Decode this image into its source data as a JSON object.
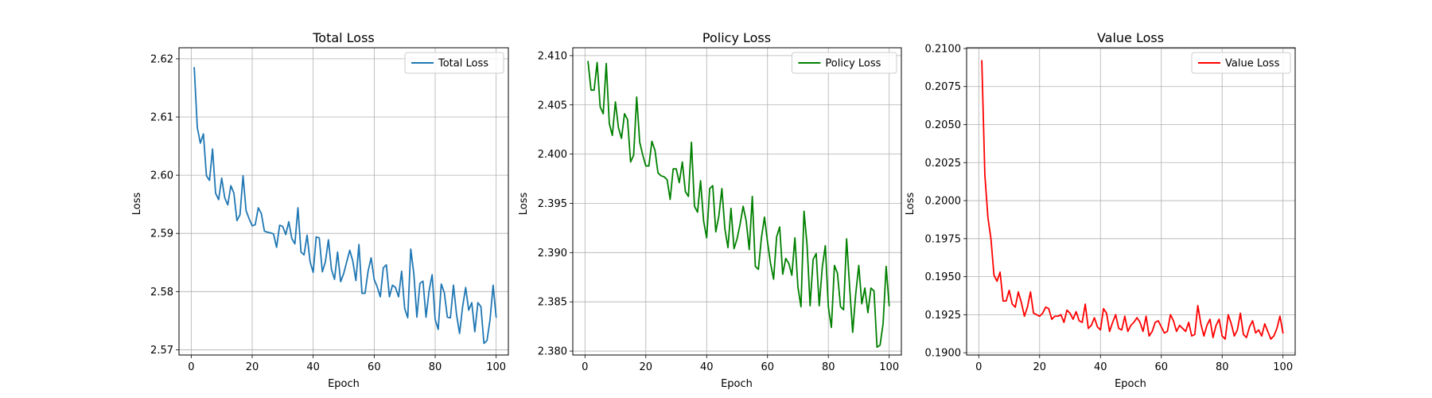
{
  "chart_data": [
    {
      "type": "line",
      "title": "Total Loss",
      "xlabel": "Epoch",
      "ylabel": "Loss",
      "xlim": [
        -4,
        104
      ],
      "ylim": [
        2.5691,
        2.6219
      ],
      "xticks": [
        0,
        20,
        40,
        60,
        80,
        100
      ],
      "yticks": [
        2.57,
        2.58,
        2.59,
        2.6,
        2.61,
        2.62
      ],
      "ytick_decimals": 2,
      "grid": true,
      "legend_position": "top-right",
      "series": [
        {
          "name": "Total Loss",
          "color": "#1f77b4",
          "x": [
            1,
            2,
            3,
            4,
            5,
            6,
            7,
            8,
            9,
            10,
            11,
            12,
            13,
            14,
            15,
            16,
            17,
            18,
            19,
            20,
            21,
            22,
            23,
            24,
            25,
            26,
            27,
            28,
            29,
            30,
            31,
            32,
            33,
            34,
            35,
            36,
            37,
            38,
            39,
            40,
            41,
            42,
            43,
            44,
            45,
            46,
            47,
            48,
            49,
            50,
            51,
            52,
            53,
            54,
            55,
            56,
            57,
            58,
            59,
            60,
            61,
            62,
            63,
            64,
            65,
            66,
            67,
            68,
            69,
            70,
            71,
            72,
            73,
            74,
            75,
            76,
            77,
            78,
            79,
            80,
            81,
            82,
            83,
            84,
            85,
            86,
            87,
            88,
            89,
            90,
            91,
            92,
            93,
            94,
            95,
            96,
            97,
            98,
            99,
            100
          ],
          "y": [
            2.6185,
            2.6082,
            2.6055,
            2.6071,
            2.5999,
            2.5991,
            2.6045,
            2.5969,
            2.5958,
            2.5995,
            2.5961,
            2.5949,
            2.5982,
            2.5969,
            2.5922,
            2.5932,
            2.5999,
            2.5939,
            2.5925,
            2.5913,
            2.5915,
            2.5944,
            2.5934,
            2.5904,
            2.5902,
            2.5901,
            2.5899,
            2.5876,
            2.5914,
            2.5912,
            2.5898,
            2.592,
            2.5891,
            2.5882,
            2.5944,
            2.5868,
            2.5863,
            2.5897,
            2.5851,
            2.5833,
            2.5894,
            2.5892,
            2.5834,
            2.5851,
            2.5889,
            2.5838,
            2.5821,
            2.5868,
            2.5817,
            2.5831,
            2.5851,
            2.5871,
            2.5852,
            2.5819,
            2.5881,
            2.5797,
            2.5797,
            2.5835,
            2.5858,
            2.5821,
            2.5808,
            2.5791,
            2.5841,
            2.5846,
            2.5791,
            2.5811,
            2.5807,
            2.5791,
            2.5835,
            2.5771,
            2.5755,
            2.5873,
            2.5831,
            2.5756,
            2.5814,
            2.5818,
            2.5756,
            2.5801,
            2.5829,
            2.5752,
            2.5735,
            2.5813,
            2.5798,
            2.5756,
            2.5755,
            2.5811,
            2.5761,
            2.5728,
            2.5774,
            2.5807,
            2.5768,
            2.5781,
            2.5731,
            2.5781,
            2.5774,
            2.5711,
            2.5716,
            2.5752,
            2.5811,
            2.5756
          ]
        }
      ]
    },
    {
      "type": "line",
      "title": "Policy Loss",
      "xlabel": "Epoch",
      "ylabel": "Loss",
      "xlim": [
        -4,
        104
      ],
      "ylim": [
        2.3796,
        2.4108
      ],
      "xticks": [
        0,
        20,
        40,
        60,
        80,
        100
      ],
      "yticks": [
        2.38,
        2.385,
        2.39,
        2.395,
        2.4,
        2.405,
        2.41
      ],
      "ytick_decimals": 3,
      "grid": true,
      "legend_position": "top-right",
      "series": [
        {
          "name": "Policy Loss",
          "color": "#008000",
          "x": [
            1,
            2,
            3,
            4,
            5,
            6,
            7,
            8,
            9,
            10,
            11,
            12,
            13,
            14,
            15,
            16,
            17,
            18,
            19,
            20,
            21,
            22,
            23,
            24,
            25,
            26,
            27,
            28,
            29,
            30,
            31,
            32,
            33,
            34,
            35,
            36,
            37,
            38,
            39,
            40,
            41,
            42,
            43,
            44,
            45,
            46,
            47,
            48,
            49,
            50,
            51,
            52,
            53,
            54,
            55,
            56,
            57,
            58,
            59,
            60,
            61,
            62,
            63,
            64,
            65,
            66,
            67,
            68,
            69,
            70,
            71,
            72,
            73,
            74,
            75,
            76,
            77,
            78,
            79,
            80,
            81,
            82,
            83,
            84,
            85,
            86,
            87,
            88,
            89,
            90,
            91,
            92,
            93,
            94,
            95,
            96,
            97,
            98,
            99,
            100
          ],
          "y": [
            2.4094,
            2.4065,
            2.4065,
            2.4093,
            2.4048,
            2.4041,
            2.4092,
            2.4031,
            2.4019,
            2.4053,
            2.4027,
            2.4016,
            2.4041,
            2.4035,
            2.3992,
            2.3999,
            2.4058,
            2.4012,
            2.3999,
            2.3988,
            2.3988,
            2.4013,
            2.4004,
            2.3981,
            2.3978,
            2.3977,
            2.3974,
            2.3954,
            2.3985,
            2.3985,
            2.3971,
            2.3992,
            2.3962,
            2.3957,
            2.4012,
            2.3947,
            2.3941,
            2.3973,
            2.3932,
            2.3915,
            2.3965,
            2.3968,
            2.3921,
            2.3937,
            2.3965,
            2.3924,
            2.3905,
            2.3945,
            2.3904,
            2.3914,
            2.3929,
            2.3947,
            2.3932,
            2.3903,
            2.3957,
            2.3886,
            2.3883,
            2.3915,
            2.3936,
            2.3911,
            2.3889,
            2.3873,
            2.3916,
            2.3926,
            2.3878,
            2.3894,
            2.3889,
            2.3877,
            2.3915,
            2.3865,
            2.3845,
            2.3942,
            2.3908,
            2.3846,
            2.3893,
            2.3899,
            2.3846,
            2.3885,
            2.3907,
            2.3845,
            2.3824,
            2.3887,
            2.3879,
            2.3845,
            2.3842,
            2.3914,
            2.3865,
            2.3819,
            2.3858,
            2.3887,
            2.3848,
            2.3864,
            2.3839,
            2.3864,
            2.3861,
            2.3804,
            2.3806,
            2.3828,
            2.3886,
            2.3846
          ]
        }
      ]
    },
    {
      "type": "line",
      "title": "Value Loss",
      "xlabel": "Epoch",
      "ylabel": "Loss",
      "xlim": [
        -4,
        104
      ],
      "ylim": [
        0.18985,
        0.21005
      ],
      "xticks": [
        0,
        20,
        40,
        60,
        80,
        100
      ],
      "yticks": [
        0.19,
        0.1925,
        0.195,
        0.1975,
        0.2,
        0.2025,
        0.205,
        0.2075,
        0.21
      ],
      "ytick_decimals": 4,
      "grid": true,
      "legend_position": "top-right",
      "series": [
        {
          "name": "Value Loss",
          "color": "#ff0000",
          "x": [
            1,
            2,
            3,
            4,
            5,
            6,
            7,
            8,
            9,
            10,
            11,
            12,
            13,
            14,
            15,
            16,
            17,
            18,
            19,
            20,
            21,
            22,
            23,
            24,
            25,
            26,
            27,
            28,
            29,
            30,
            31,
            32,
            33,
            34,
            35,
            36,
            37,
            38,
            39,
            40,
            41,
            42,
            43,
            44,
            45,
            46,
            47,
            48,
            49,
            50,
            51,
            52,
            53,
            54,
            55,
            56,
            57,
            58,
            59,
            60,
            61,
            62,
            63,
            64,
            65,
            66,
            67,
            68,
            69,
            70,
            71,
            72,
            73,
            74,
            75,
            76,
            77,
            78,
            79,
            80,
            81,
            82,
            83,
            84,
            85,
            86,
            87,
            88,
            89,
            90,
            91,
            92,
            93,
            94,
            95,
            96,
            97,
            98,
            99,
            100
          ],
          "y": [
            0.2092,
            0.2017,
            0.1989,
            0.1975,
            0.1951,
            0.1947,
            0.1953,
            0.1934,
            0.1934,
            0.1941,
            0.1932,
            0.193,
            0.194,
            0.1933,
            0.1924,
            0.193,
            0.194,
            0.1926,
            0.1925,
            0.1924,
            0.1926,
            0.193,
            0.1929,
            0.1922,
            0.1924,
            0.1924,
            0.1925,
            0.192,
            0.1928,
            0.1926,
            0.1922,
            0.1927,
            0.1921,
            0.192,
            0.1932,
            0.1916,
            0.1918,
            0.1923,
            0.1917,
            0.1915,
            0.1929,
            0.1926,
            0.1914,
            0.192,
            0.1925,
            0.1916,
            0.1915,
            0.1924,
            0.1914,
            0.1918,
            0.192,
            0.1923,
            0.192,
            0.1914,
            0.1924,
            0.1911,
            0.1914,
            0.192,
            0.1921,
            0.1917,
            0.1913,
            0.1914,
            0.1925,
            0.1921,
            0.1914,
            0.1918,
            0.1916,
            0.1914,
            0.192,
            0.1911,
            0.1912,
            0.1931,
            0.1919,
            0.1911,
            0.1918,
            0.1922,
            0.191,
            0.1918,
            0.1922,
            0.1911,
            0.1909,
            0.1925,
            0.1919,
            0.1911,
            0.1915,
            0.1926,
            0.1912,
            0.191,
            0.1917,
            0.1921,
            0.1913,
            0.1915,
            0.1911,
            0.1919,
            0.1914,
            0.1909,
            0.1911,
            0.1916,
            0.1924,
            0.1913
          ]
        }
      ]
    }
  ]
}
